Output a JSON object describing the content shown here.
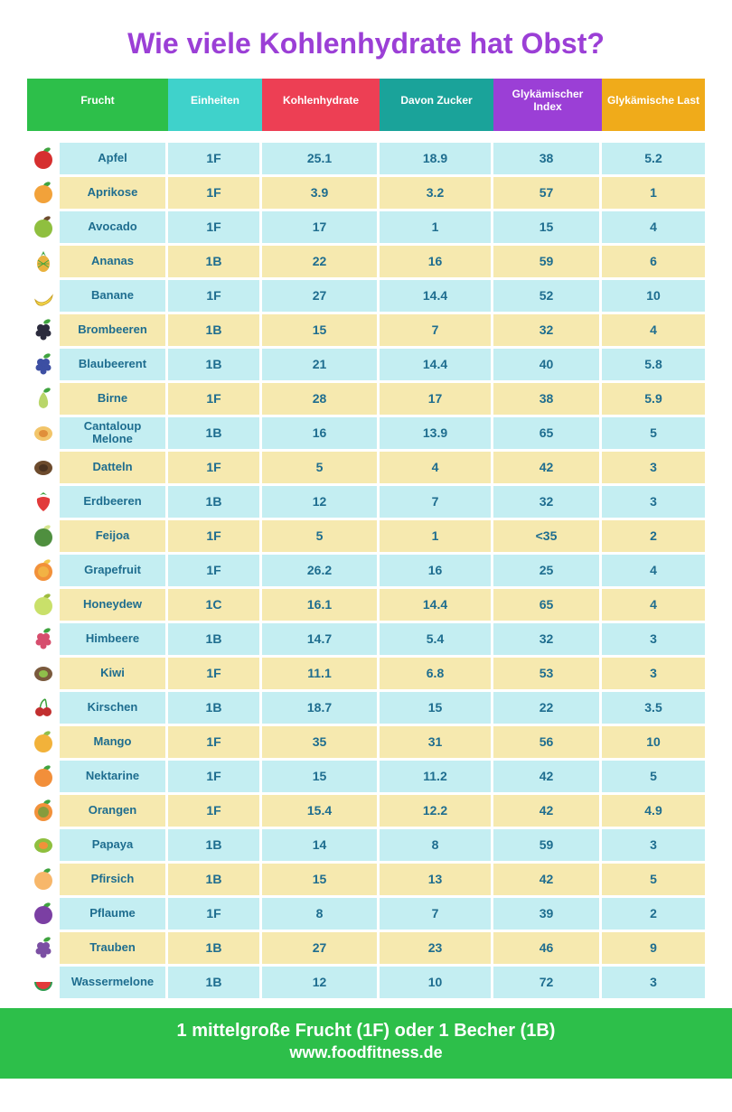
{
  "title": "Wie viele Kohlenhydrate hat Obst?",
  "columns": [
    {
      "label": "Frucht",
      "bg": "#2dbf4a"
    },
    {
      "label": "Einheiten",
      "bg": "#3fd2cb"
    },
    {
      "label": "Kohlenhydrate",
      "bg": "#ed3f54"
    },
    {
      "label": "Davon Zucker",
      "bg": "#1aa39a"
    },
    {
      "label": "Glykämischer Index",
      "bg": "#9b3fd6"
    },
    {
      "label": "Glykämische Last",
      "bg": "#f0ab1a"
    }
  ],
  "row_colors": {
    "even": "#c4eef2",
    "odd": "#f6e9af"
  },
  "cell_text_color": "#1e6d8f",
  "rows": [
    {
      "icon": "apple",
      "icon_fill": "#d62f2f",
      "icon_accent": "#3fa33f",
      "name": "Apfel",
      "unit": "1F",
      "carbs": "25.1",
      "sugar": "18.9",
      "gi": "38",
      "gl": "5.2"
    },
    {
      "icon": "apricot",
      "icon_fill": "#f2a23a",
      "icon_accent": "#3fa33f",
      "name": "Aprikose",
      "unit": "1F",
      "carbs": "3.9",
      "sugar": "3.2",
      "gi": "57",
      "gl": "1"
    },
    {
      "icon": "avocado",
      "icon_fill": "#8fbf3f",
      "icon_accent": "#6d4b2d",
      "name": "Avocado",
      "unit": "1F",
      "carbs": "17",
      "sugar": "1",
      "gi": "15",
      "gl": "4"
    },
    {
      "icon": "pineapple",
      "icon_fill": "#e9b23e",
      "icon_accent": "#3fa33f",
      "name": "Ananas",
      "unit": "1B",
      "carbs": "22",
      "sugar": "16",
      "gi": "59",
      "gl": "6"
    },
    {
      "icon": "banana",
      "icon_fill": "#f6d94b",
      "icon_accent": "#c9a227",
      "name": "Banane",
      "unit": "1F",
      "carbs": "27",
      "sugar": "14.4",
      "gi": "52",
      "gl": "10"
    },
    {
      "icon": "blackberry",
      "icon_fill": "#2b2b3d",
      "icon_accent": "#3fa33f",
      "name": "Brombeeren",
      "unit": "1B",
      "carbs": "15",
      "sugar": "7",
      "gi": "32",
      "gl": "4"
    },
    {
      "icon": "blueberry",
      "icon_fill": "#3d4fa3",
      "icon_accent": "#3fa33f",
      "name": "Blaubeerent",
      "unit": "1B",
      "carbs": "21",
      "sugar": "14.4",
      "gi": "40",
      "gl": "5.8"
    },
    {
      "icon": "pear",
      "icon_fill": "#b9d66a",
      "icon_accent": "#3fa33f",
      "name": "Birne",
      "unit": "1F",
      "carbs": "28",
      "sugar": "17",
      "gi": "38",
      "gl": "5.9"
    },
    {
      "icon": "cantaloupe",
      "icon_fill": "#f2c56a",
      "icon_accent": "#e08f3a",
      "name": "Cantaloup Melone",
      "unit": "1B",
      "carbs": "16",
      "sugar": "13.9",
      "gi": "65",
      "gl": "5"
    },
    {
      "icon": "date",
      "icon_fill": "#6d4b2d",
      "icon_accent": "#4a3220",
      "name": "Datteln",
      "unit": "1F",
      "carbs": "5",
      "sugar": "4",
      "gi": "42",
      "gl": "3"
    },
    {
      "icon": "strawberry",
      "icon_fill": "#e23a3a",
      "icon_accent": "#3fa33f",
      "name": "Erdbeeren",
      "unit": "1B",
      "carbs": "12",
      "sugar": "7",
      "gi": "32",
      "gl": "3"
    },
    {
      "icon": "feijoa",
      "icon_fill": "#4f8f3f",
      "icon_accent": "#d6e68f",
      "name": "Feijoa",
      "unit": "1F",
      "carbs": "5",
      "sugar": "1",
      "gi": "<35",
      "gl": "2"
    },
    {
      "icon": "grapefruit",
      "icon_fill": "#f2913a",
      "icon_accent": "#f2c84b",
      "name": "Grapefruit",
      "unit": "1F",
      "carbs": "26.2",
      "sugar": "16",
      "gi": "25",
      "gl": "4"
    },
    {
      "icon": "honeydew",
      "icon_fill": "#c9e06a",
      "icon_accent": "#9dbb3f",
      "name": "Honeydew",
      "unit": "1C",
      "carbs": "16.1",
      "sugar": "14.4",
      "gi": "65",
      "gl": "4"
    },
    {
      "icon": "raspberry",
      "icon_fill": "#d64d6d",
      "icon_accent": "#3fa33f",
      "name": "Himbeere",
      "unit": "1B",
      "carbs": "14.7",
      "sugar": "5.4",
      "gi": "32",
      "gl": "3"
    },
    {
      "icon": "kiwi",
      "icon_fill": "#7a5a3d",
      "icon_accent": "#8fbf4b",
      "name": "Kiwi",
      "unit": "1F",
      "carbs": "11.1",
      "sugar": "6.8",
      "gi": "53",
      "gl": "3"
    },
    {
      "icon": "cherry",
      "icon_fill": "#c22f2f",
      "icon_accent": "#3fa33f",
      "name": "Kirschen",
      "unit": "1B",
      "carbs": "18.7",
      "sugar": "15",
      "gi": "22",
      "gl": "3.5"
    },
    {
      "icon": "mango",
      "icon_fill": "#f2b23a",
      "icon_accent": "#8fbf4b",
      "name": "Mango",
      "unit": "1F",
      "carbs": "35",
      "sugar": "31",
      "gi": "56",
      "gl": "10"
    },
    {
      "icon": "nectarine",
      "icon_fill": "#f28f3a",
      "icon_accent": "#3fa33f",
      "name": "Nektarine",
      "unit": "1F",
      "carbs": "15",
      "sugar": "11.2",
      "gi": "42",
      "gl": "5"
    },
    {
      "icon": "orange",
      "icon_fill": "#f2913a",
      "icon_accent": "#3fa33f",
      "name": "Orangen",
      "unit": "1F",
      "carbs": "15.4",
      "sugar": "12.2",
      "gi": "42",
      "gl": "4.9"
    },
    {
      "icon": "papaya",
      "icon_fill": "#8fbf3f",
      "icon_accent": "#f2913a",
      "name": "Papaya",
      "unit": "1B",
      "carbs": "14",
      "sugar": "8",
      "gi": "59",
      "gl": "3"
    },
    {
      "icon": "peach",
      "icon_fill": "#f7b76a",
      "icon_accent": "#3fa33f",
      "name": "Pfirsich",
      "unit": "1B",
      "carbs": "15",
      "sugar": "13",
      "gi": "42",
      "gl": "5"
    },
    {
      "icon": "plum",
      "icon_fill": "#7b3fa3",
      "icon_accent": "#3fa33f",
      "name": "Pflaume",
      "unit": "1F",
      "carbs": "8",
      "sugar": "7",
      "gi": "39",
      "gl": "2"
    },
    {
      "icon": "grapes",
      "icon_fill": "#7b4fa3",
      "icon_accent": "#3fa33f",
      "name": "Trauben",
      "unit": "1B",
      "carbs": "27",
      "sugar": "23",
      "gi": "46",
      "gl": "9"
    },
    {
      "icon": "watermelon",
      "icon_fill": "#2f9b4f",
      "icon_accent": "#e23a3a",
      "name": "Wassermelone",
      "unit": "1B",
      "carbs": "12",
      "sugar": "10",
      "gi": "72",
      "gl": "3"
    }
  ],
  "footer": {
    "line1": "1 mittelgroße Frucht (1F) oder 1 Becher (1B)",
    "line2": "www.foodfitness.de",
    "bg": "#2dbf4a"
  }
}
